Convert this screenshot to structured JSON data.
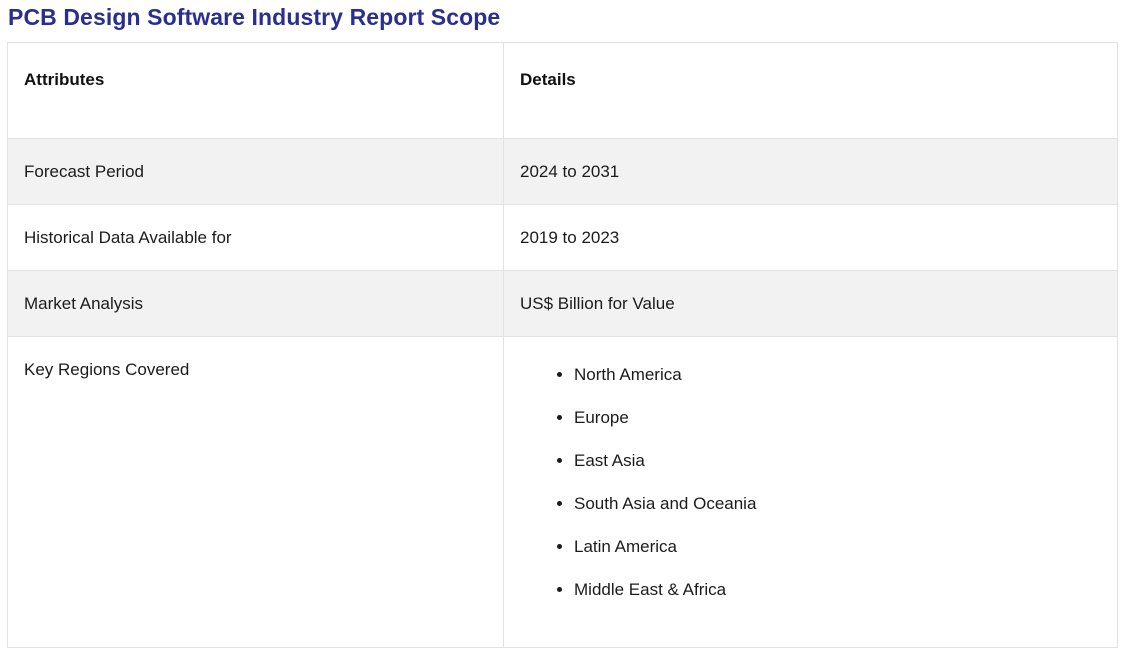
{
  "page_title": "PCB Design Software Industry Report Scope",
  "colors": {
    "title_accent": "#2a2f8f",
    "row_alt_bg": "#f2f2f2",
    "border": "#e2e2e2",
    "text": "#1b1b1b"
  },
  "table": {
    "headers": {
      "attributes": "Attributes",
      "details": "Details"
    },
    "rows": [
      {
        "attribute": "Forecast Period",
        "detail": "2024 to 2031"
      },
      {
        "attribute": "Historical Data Available for",
        "detail": "2019 to 2023"
      },
      {
        "attribute": "Market Analysis",
        "detail": "US$ Billion for Value"
      },
      {
        "attribute": "Key Regions Covered"
      }
    ],
    "regions": [
      "North America",
      "Europe",
      "East Asia",
      "South Asia and Oceania",
      "Latin America",
      "Middle East & Africa"
    ]
  }
}
